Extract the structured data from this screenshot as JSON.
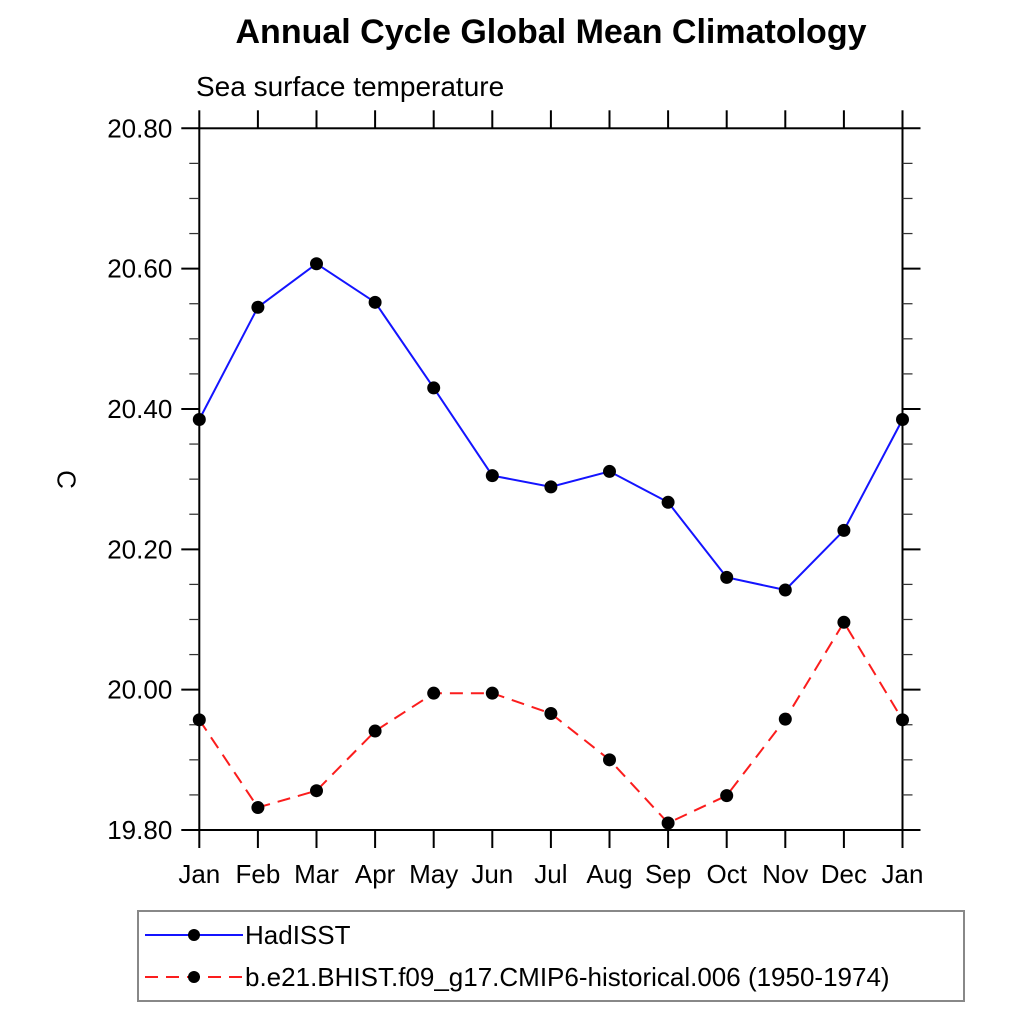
{
  "page": {
    "background": "#ffffff"
  },
  "chart_data": {
    "type": "line",
    "title": "Annual Cycle Global Mean Climatology",
    "subtitle": "Sea surface temperature",
    "ylabel": "C",
    "xlabel": "",
    "grid": false,
    "legend_position": "bottom-left boxed",
    "x_categories": [
      "Jan",
      "Feb",
      "Mar",
      "Apr",
      "May",
      "Jun",
      "Jul",
      "Aug",
      "Sep",
      "Oct",
      "Nov",
      "Dec",
      "Jan"
    ],
    "ylim": [
      19.8,
      20.8
    ],
    "y_major_ticks": [
      19.8,
      20.0,
      20.2,
      20.4,
      20.6,
      20.8
    ],
    "y_major_tick_labels": [
      "19.80",
      "20.00",
      "20.20",
      "20.40",
      "20.60",
      "20.80"
    ],
    "y_minor_tick_step": 0.05,
    "series": [
      {
        "name": "HadISST",
        "color": "#1414ff",
        "line_style": "solid",
        "marker": "circle",
        "marker_color": "#000000",
        "values": [
          20.385,
          20.545,
          20.607,
          20.552,
          20.43,
          20.305,
          20.289,
          20.311,
          20.267,
          20.16,
          20.142,
          20.227,
          20.385
        ]
      },
      {
        "name": "b.e21.BHIST.f09_g17.CMIP6-historical.006 (1950-1974)",
        "color": "#fb1d1d",
        "line_style": "dashed",
        "marker": "circle",
        "marker_color": "#000000",
        "values": [
          19.957,
          19.832,
          19.856,
          19.941,
          19.995,
          19.995,
          19.966,
          19.9,
          19.81,
          19.849,
          19.958,
          20.096,
          19.957
        ]
      }
    ]
  }
}
